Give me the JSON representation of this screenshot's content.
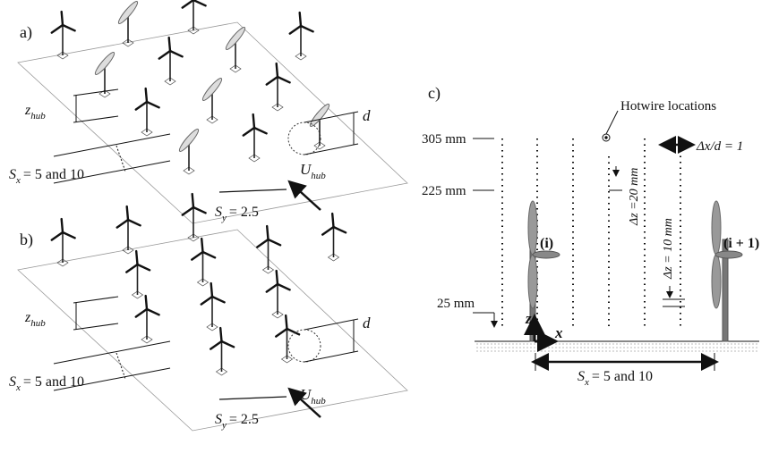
{
  "panels": [
    {
      "label": "a)",
      "z_hub": {
        "symbol": "z",
        "subscript": "hub"
      },
      "d": "d",
      "S_x": {
        "symbol": "S",
        "subscript": "x",
        "text": "= 5 and 10"
      },
      "S_y": {
        "symbol": "S",
        "subscript": "y",
        "text": "= 2.5"
      },
      "U_hub": {
        "symbol": "U",
        "subscript": "hub"
      }
    },
    {
      "label": "b)",
      "z_hub": {
        "symbol": "z",
        "subscript": "hub"
      },
      "d": "d",
      "S_x": {
        "symbol": "S",
        "subscript": "x",
        "text": "= 5 and 10"
      },
      "S_y": {
        "symbol": "S",
        "subscript": "y",
        "text": "= 2.5"
      },
      "U_hub": {
        "symbol": "U",
        "subscript": "hub"
      }
    }
  ],
  "panel_c": {
    "label": "c)",
    "hotwire": "Hotwire locations",
    "heights": [
      "305 mm",
      "225 mm",
      "25 mm"
    ],
    "dx": "Δx/d = 1",
    "dz_20": "Δz =20 mm",
    "dz_10": "Δz = 10 mm",
    "turbine_i": "(i)",
    "turbine_i1": "(i + 1)",
    "axis_z": "z",
    "axis_x": "x",
    "S_x": {
      "symbol": "S",
      "subscript": "x",
      "text": "= 5 and 10"
    }
  }
}
